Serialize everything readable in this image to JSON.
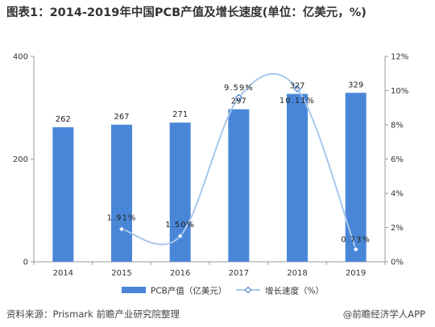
{
  "title": "图表1：2014-2019年中国PCB产值及增长速度(单位：亿美元，%)",
  "source": "资料来源：Prismark 前瞻产业研究院整理",
  "credit": "@前瞻经济学人APP",
  "colors": {
    "bar": "#4a86d8",
    "line": "#a8c8ea",
    "marker": "#4a86d8",
    "axis": "#999999"
  },
  "chart_data": {
    "type": "bar",
    "categories": [
      "2014",
      "2015",
      "2016",
      "2017",
      "2018",
      "2019"
    ],
    "series": [
      {
        "name": "PCB产值（亿美元）",
        "type": "bar",
        "axis": "left",
        "values": [
          262,
          267,
          271,
          297,
          327,
          329
        ],
        "labels": [
          "262",
          "267",
          "271",
          "297",
          "327",
          "329"
        ]
      },
      {
        "name": "增长速度（%）",
        "type": "line",
        "axis": "right",
        "smooth": true,
        "values": [
          null,
          1.91,
          1.5,
          9.59,
          10.11,
          0.73
        ],
        "labels": [
          "",
          "1.91%",
          "1.50%",
          "9.59%",
          "10.11%",
          "0.73%"
        ]
      }
    ],
    "left_axis": {
      "min": 0,
      "max": 400,
      "ticks": [
        "0",
        "200",
        "400"
      ]
    },
    "right_axis": {
      "min": 0,
      "max": 12,
      "ticks": [
        "0%",
        "2%",
        "4%",
        "6%",
        "8%",
        "10%",
        "12%"
      ]
    },
    "legend_position": "bottom",
    "grid": false
  }
}
